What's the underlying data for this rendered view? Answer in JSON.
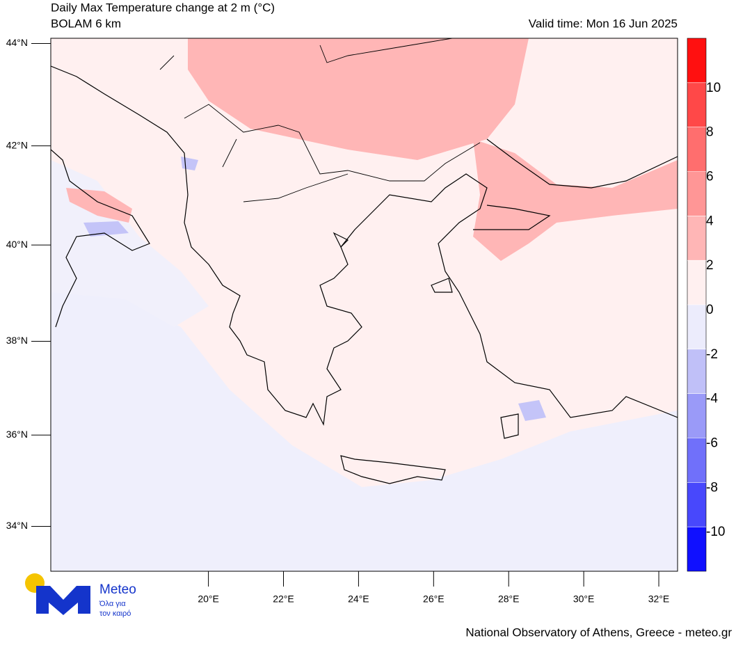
{
  "header": {
    "title": "Daily Max Temperature change at 2 m (°C)",
    "subtitle": "BOLAM 6 km",
    "valid_time": "Valid time: Mon 16 Jun 2025"
  },
  "map": {
    "projection": "mercator",
    "xlim": [
      15.8,
      32.5
    ],
    "ylim": [
      33,
      44.1
    ],
    "yticks": [
      {
        "value": 44,
        "label": "44°N"
      },
      {
        "value": 42,
        "label": "42°N"
      },
      {
        "value": 40,
        "label": "40°N"
      },
      {
        "value": 38,
        "label": "38°N"
      },
      {
        "value": 36,
        "label": "36°N"
      },
      {
        "value": 34,
        "label": "34°N"
      }
    ],
    "xticks": [
      {
        "value": 20,
        "label": "20°E"
      },
      {
        "value": 22,
        "label": "22°E"
      },
      {
        "value": 24,
        "label": "24°E"
      },
      {
        "value": 26,
        "label": "26°E"
      },
      {
        "value": 28,
        "label": "28°E"
      },
      {
        "value": 30,
        "label": "30°E"
      },
      {
        "value": 32,
        "label": "32°E"
      }
    ]
  },
  "colorbar": {
    "clim": [
      -12,
      12
    ],
    "ticks": [
      10,
      8,
      6,
      4,
      2,
      0,
      -2,
      -4,
      -6,
      -8,
      -10
    ],
    "colors": [
      "#1010ff",
      "#4848fc",
      "#7070fa",
      "#9a9af8",
      "#c0c0f8",
      "#ececfc",
      "#fff0f0",
      "#ffb6b6",
      "#ff9696",
      "#ff6e6e",
      "#ff4848",
      "#ff1010"
    ]
  },
  "logo": {
    "name": "Meteo",
    "tagline_1": "Όλα για",
    "tagline_2": "τον καιρό"
  },
  "footer": "National Observatory of Athens, Greece - meteo.gr"
}
